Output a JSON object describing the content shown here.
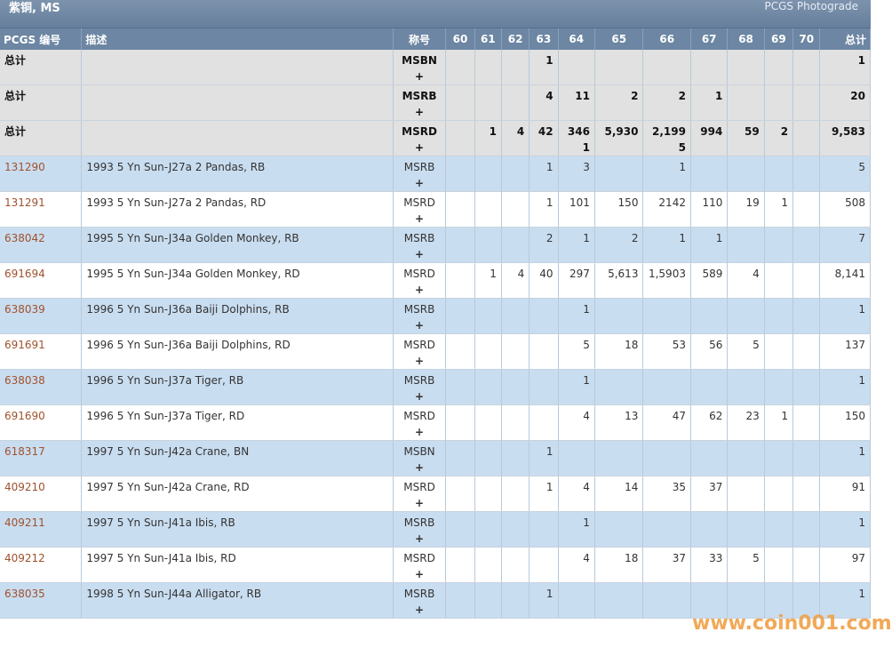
{
  "header": {
    "title": "紫铜, MS",
    "photograde_link": "PCGS Photograde"
  },
  "columns": [
    "PCGS 编号",
    "描述",
    "称号",
    "60",
    "61",
    "62",
    "63",
    "64",
    "65",
    "66",
    "67",
    "68",
    "69",
    "70",
    "总计"
  ],
  "totals": [
    {
      "label": "总计",
      "des": "MSBN",
      "plus": "+",
      "g": [
        "",
        "",
        "",
        "1",
        "",
        "",
        "",
        "",
        "",
        "",
        "",
        ""
      ],
      "total": "1"
    },
    {
      "label": "总计",
      "des": "MSRB",
      "plus": "+",
      "g": [
        "",
        "",
        "",
        "4",
        "11",
        "2",
        "2",
        "1",
        "",
        "",
        "",
        ""
      ],
      "total": "20"
    },
    {
      "label": "总计",
      "des": "MSRD",
      "plus": "+",
      "g": [
        "",
        "1",
        "4",
        "42",
        "3461",
        "5,930",
        "2,1995",
        "994",
        "59",
        "2",
        "",
        ""
      ],
      "total": "9,583"
    }
  ],
  "rows": [
    {
      "pcgs": "131290",
      "desc": "1993 5 Yn Sun-J27a 2 Pandas, RB",
      "des": "MSRB",
      "plus": "+",
      "g": [
        "",
        "",
        "",
        "1",
        "3",
        "",
        "1",
        "",
        "",
        "",
        "",
        ""
      ],
      "total": "5"
    },
    {
      "pcgs": "131291",
      "desc": "1993 5 Yn Sun-J27a 2 Pandas, RD",
      "des": "MSRD",
      "plus": "+",
      "g": [
        "",
        "",
        "",
        "1",
        "101",
        "150",
        "2142",
        "110",
        "19",
        "1",
        "",
        ""
      ],
      "total": "508"
    },
    {
      "pcgs": "638042",
      "desc": "1995 5 Yn Sun-J34a Golden Monkey, RB",
      "des": "MSRB",
      "plus": "+",
      "g": [
        "",
        "",
        "",
        "2",
        "1",
        "2",
        "1",
        "1",
        "",
        "",
        "",
        ""
      ],
      "total": "7"
    },
    {
      "pcgs": "691694",
      "desc": "1995 5 Yn Sun-J34a Golden Monkey, RD",
      "des": "MSRD",
      "plus": "+",
      "g": [
        "",
        "1",
        "4",
        "40",
        "297",
        "5,613",
        "1,5903",
        "589",
        "4",
        "",
        "",
        ""
      ],
      "total": "8,141"
    },
    {
      "pcgs": "638039",
      "desc": "1996 5 Yn Sun-J36a Baiji Dolphins, RB",
      "des": "MSRB",
      "plus": "+",
      "g": [
        "",
        "",
        "",
        "",
        "1",
        "",
        "",
        "",
        "",
        "",
        "",
        ""
      ],
      "total": "1"
    },
    {
      "pcgs": "691691",
      "desc": "1996 5 Yn Sun-J36a Baiji Dolphins, RD",
      "des": "MSRD",
      "plus": "+",
      "g": [
        "",
        "",
        "",
        "",
        "5",
        "18",
        "53",
        "56",
        "5",
        "",
        "",
        ""
      ],
      "total": "137"
    },
    {
      "pcgs": "638038",
      "desc": "1996 5 Yn Sun-J37a Tiger, RB",
      "des": "MSRB",
      "plus": "+",
      "g": [
        "",
        "",
        "",
        "",
        "1",
        "",
        "",
        "",
        "",
        "",
        "",
        ""
      ],
      "total": "1"
    },
    {
      "pcgs": "691690",
      "desc": "1996 5 Yn Sun-J37a Tiger, RD",
      "des": "MSRD",
      "plus": "+",
      "g": [
        "",
        "",
        "",
        "",
        "4",
        "13",
        "47",
        "62",
        "23",
        "1",
        "",
        ""
      ],
      "total": "150"
    },
    {
      "pcgs": "618317",
      "desc": "1997 5 Yn Sun-J42a Crane, BN",
      "des": "MSBN",
      "plus": "+",
      "g": [
        "",
        "",
        "",
        "1",
        "",
        "",
        "",
        "",
        "",
        "",
        "",
        ""
      ],
      "total": "1"
    },
    {
      "pcgs": "409210",
      "desc": "1997 5 Yn Sun-J42a Crane, RD",
      "des": "MSRD",
      "plus": "+",
      "g": [
        "",
        "",
        "",
        "1",
        "4",
        "14",
        "35",
        "37",
        "",
        "",
        "",
        ""
      ],
      "total": "91"
    },
    {
      "pcgs": "409211",
      "desc": "1997 5 Yn Sun-J41a Ibis, RB",
      "des": "MSRB",
      "plus": "+",
      "g": [
        "",
        "",
        "",
        "",
        "1",
        "",
        "",
        "",
        "",
        "",
        "",
        ""
      ],
      "total": "1"
    },
    {
      "pcgs": "409212",
      "desc": "1997 5 Yn Sun-J41a Ibis, RD",
      "des": "MSRD",
      "plus": "+",
      "g": [
        "",
        "",
        "",
        "",
        "4",
        "18",
        "37",
        "33",
        "5",
        "",
        "",
        ""
      ],
      "total": "97"
    },
    {
      "pcgs": "638035",
      "desc": "1998 5 Yn Sun-J44a Alligator, RB",
      "des": "MSRB",
      "plus": "+",
      "g": [
        "",
        "",
        "",
        "1",
        "",
        "",
        "",
        "",
        "",
        "",
        "",
        ""
      ],
      "total": "1"
    }
  ],
  "watermark": "www.coin001.com"
}
